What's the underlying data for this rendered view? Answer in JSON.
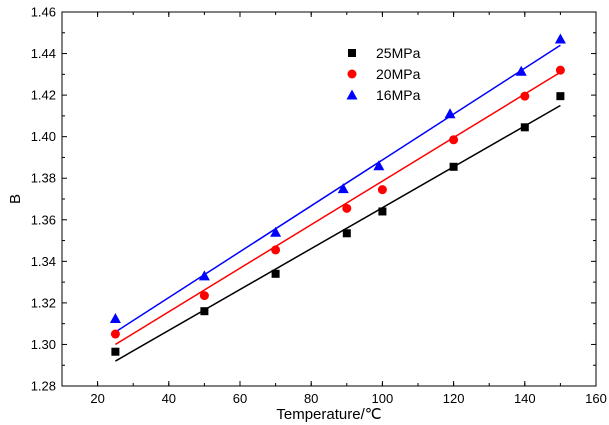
{
  "chart_data": {
    "type": "scatter",
    "xlabel": "Temperature/℃",
    "ylabel": "B",
    "xlim": [
      10,
      160
    ],
    "ylim": [
      1.28,
      1.46
    ],
    "xticks": [
      20,
      40,
      60,
      80,
      100,
      120,
      140,
      160
    ],
    "yticks": [
      1.28,
      1.3,
      1.32,
      1.34,
      1.36,
      1.38,
      1.4,
      1.42,
      1.44,
      1.46
    ],
    "grid": false,
    "legend_position": "top-right",
    "series": [
      {
        "name": "25MPa",
        "color": "#000000",
        "marker": "square",
        "x": [
          25,
          50,
          70,
          90,
          100,
          120,
          140,
          150
        ],
        "y": [
          1.2965,
          1.316,
          1.334,
          1.3535,
          1.364,
          1.3855,
          1.4045,
          1.4195
        ],
        "fit": {
          "x": [
            25,
            150
          ],
          "y": [
            1.292,
            1.415
          ]
        }
      },
      {
        "name": "20MPa",
        "color": "#ff0000",
        "marker": "circle",
        "x": [
          25,
          50,
          70,
          90,
          100,
          120,
          140,
          150
        ],
        "y": [
          1.305,
          1.3235,
          1.3455,
          1.3655,
          1.3745,
          1.3985,
          1.4195,
          1.432
        ],
        "fit": {
          "x": [
            25,
            150
          ],
          "y": [
            1.3,
            1.431
          ]
        }
      },
      {
        "name": "16MPa",
        "color": "#0000ff",
        "marker": "triangle",
        "x": [
          25,
          50,
          70,
          89,
          99,
          119,
          139,
          150
        ],
        "y": [
          1.3125,
          1.333,
          1.354,
          1.375,
          1.386,
          1.411,
          1.4315,
          1.447
        ],
        "fit": {
          "x": [
            25,
            150
          ],
          "y": [
            1.306,
            1.444
          ]
        }
      }
    ]
  }
}
